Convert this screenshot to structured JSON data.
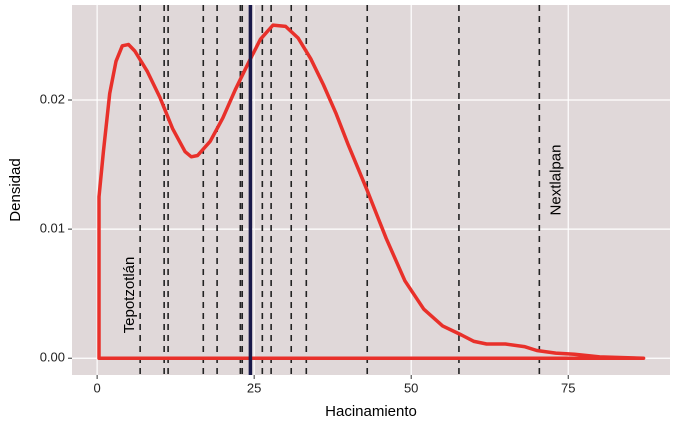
{
  "chart_data": {
    "type": "density",
    "x_label": "Hacinamiento",
    "y_label": "Densidad",
    "xlim": [
      -4,
      91.2
    ],
    "ylim": [
      -0.0013,
      0.02736
    ],
    "xticks": [
      0,
      25,
      50,
      75
    ],
    "yticks": [
      {
        "value": 0,
        "label": "0.00"
      },
      0.01,
      0.02
    ],
    "grid": true,
    "background": "#e0d8d9",
    "series": [
      {
        "color": "#e8302a",
        "x": [
          0.3,
          0.3,
          1,
          2,
          3,
          4,
          5,
          6,
          8,
          10,
          12,
          14,
          15,
          16,
          18,
          20,
          22,
          24,
          26,
          28,
          30,
          32,
          34,
          36,
          38,
          40,
          43,
          46,
          49,
          52,
          55,
          58,
          60,
          62,
          65,
          68,
          70,
          73,
          76,
          80,
          87
        ],
        "values": [
          0,
          0.0125,
          0.016,
          0.0205,
          0.023,
          0.0242,
          0.0243,
          0.0238,
          0.0222,
          0.0202,
          0.0178,
          0.016,
          0.0156,
          0.0157,
          0.0168,
          0.0186,
          0.0208,
          0.0228,
          0.0247,
          0.0258,
          0.0257,
          0.0248,
          0.0232,
          0.0212,
          0.019,
          0.0165,
          0.013,
          0.0093,
          0.006,
          0.0038,
          0.0025,
          0.0018,
          0.0013,
          0.0011,
          0.0011,
          0.0009,
          0.0006,
          0.0004,
          0.0003,
          0.0001,
          0
        ]
      }
    ],
    "vlines": [
      {
        "x": 6.85,
        "label": "Tepotzotlán"
      },
      10.67,
      11.3,
      16.9,
      19.1,
      22.8,
      23.1,
      26.3,
      27.7,
      30.9,
      33.3,
      43.0,
      57.6,
      {
        "x": 70.4,
        "label": "Nextlalpan"
      }
    ],
    "vline_color": "#222222",
    "mean_line": 24.4,
    "mean_color": "#1a1a4a"
  }
}
